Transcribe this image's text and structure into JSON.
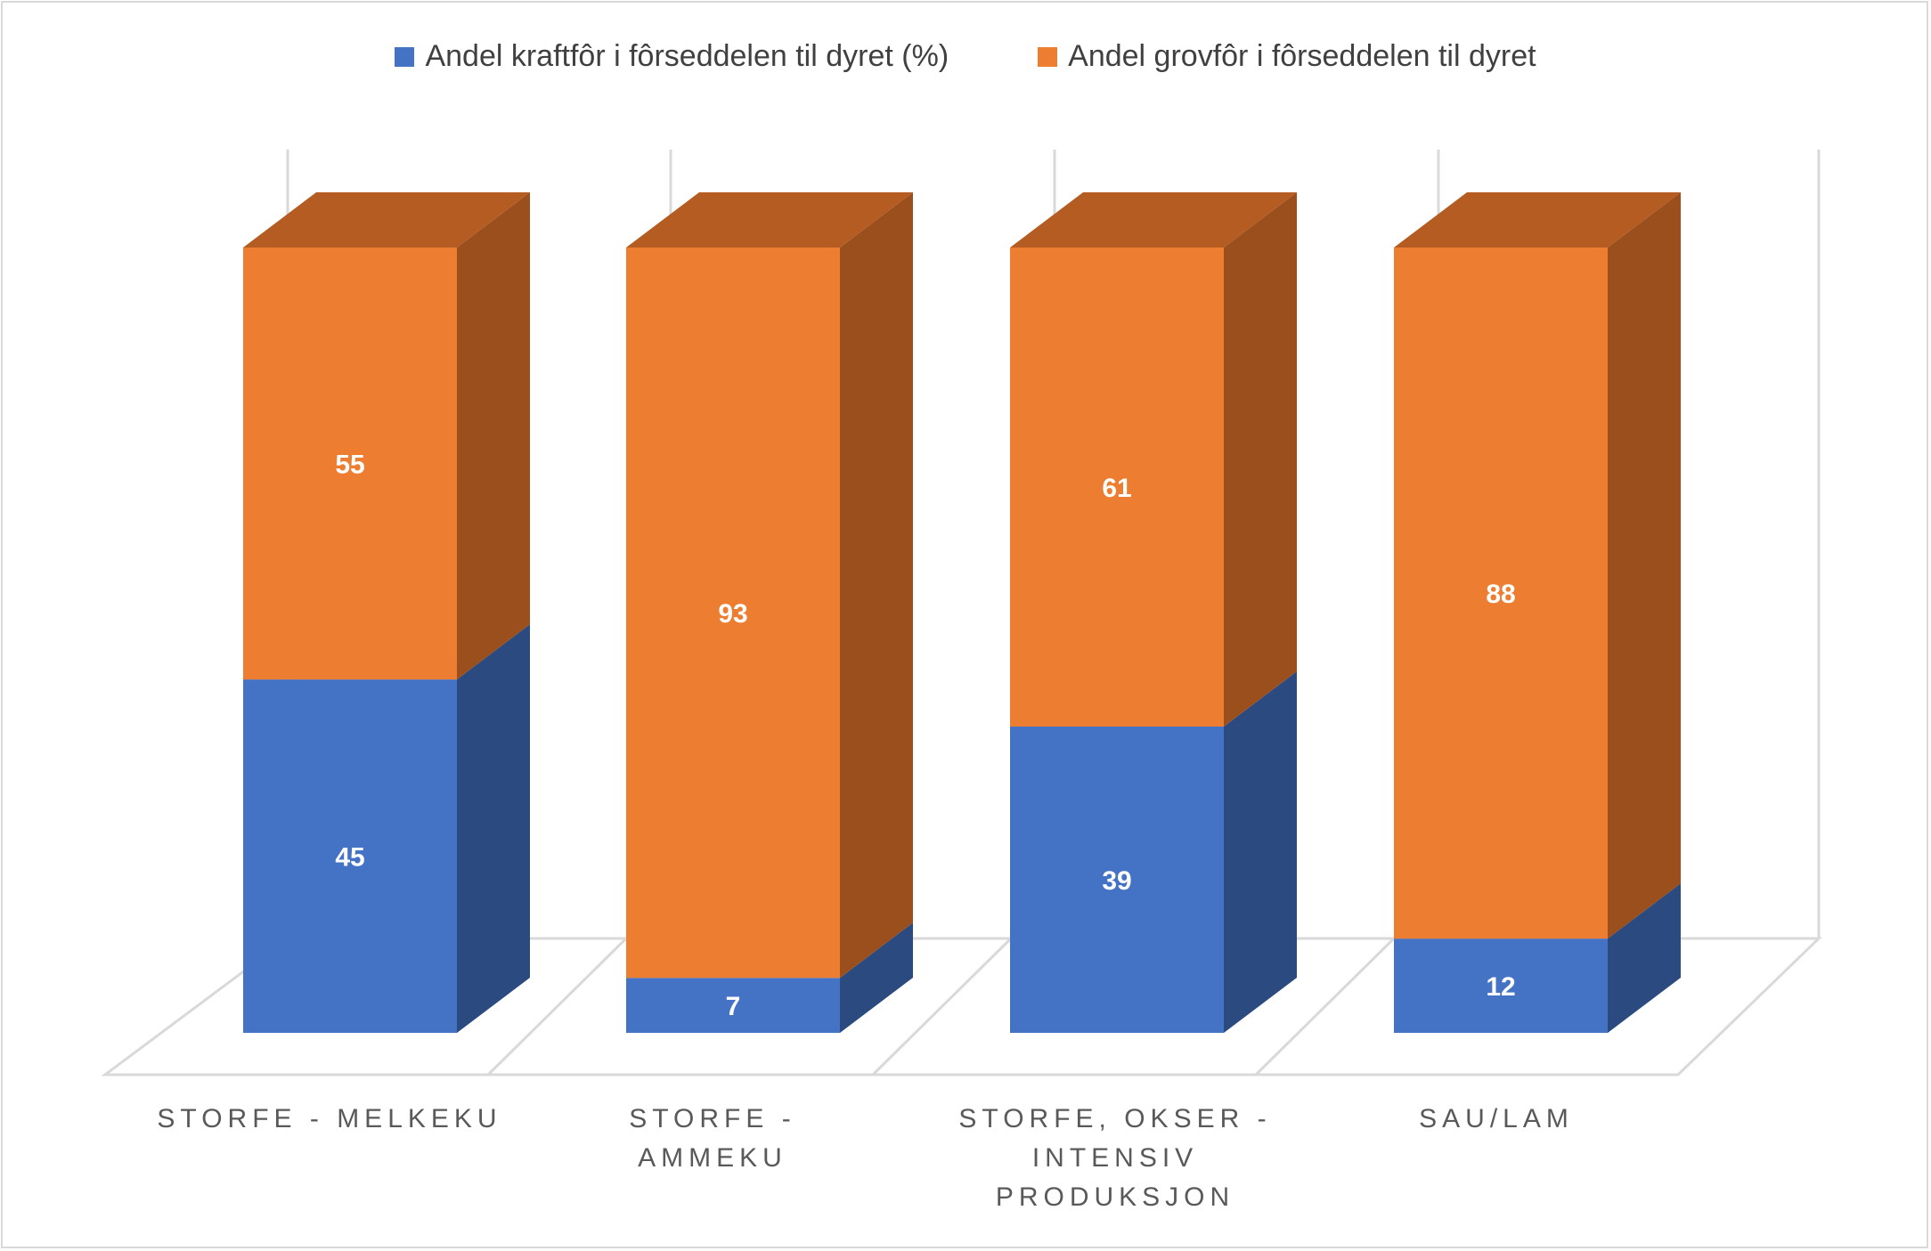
{
  "chart_data": {
    "type": "bar",
    "stacked": true,
    "three_d": true,
    "categories": [
      [
        "STORFE - MELKEKU"
      ],
      [
        "STORFE -",
        "AMMEKU"
      ],
      [
        "STORFE, OKSER -",
        "INTENSIV",
        "PRODUKSJON"
      ],
      [
        "SAU/LAM"
      ]
    ],
    "series": [
      {
        "name": "Andel kraftfôr i fôrseddelen til dyret (%)",
        "values": [
          45,
          7,
          39,
          12
        ],
        "color": "#4472c4",
        "side_color": "#2a4a80",
        "top_color": "#3a63ad"
      },
      {
        "name": "Andel grovfôr i fôrseddelen til dyret",
        "values": [
          55,
          93,
          61,
          88
        ],
        "color": "#ed7d31",
        "side_color": "#9a4f1d",
        "top_color": "#b45c22"
      }
    ],
    "ylim": [
      0,
      100
    ],
    "legend_position": "top",
    "grid": true,
    "data_labels": true
  }
}
